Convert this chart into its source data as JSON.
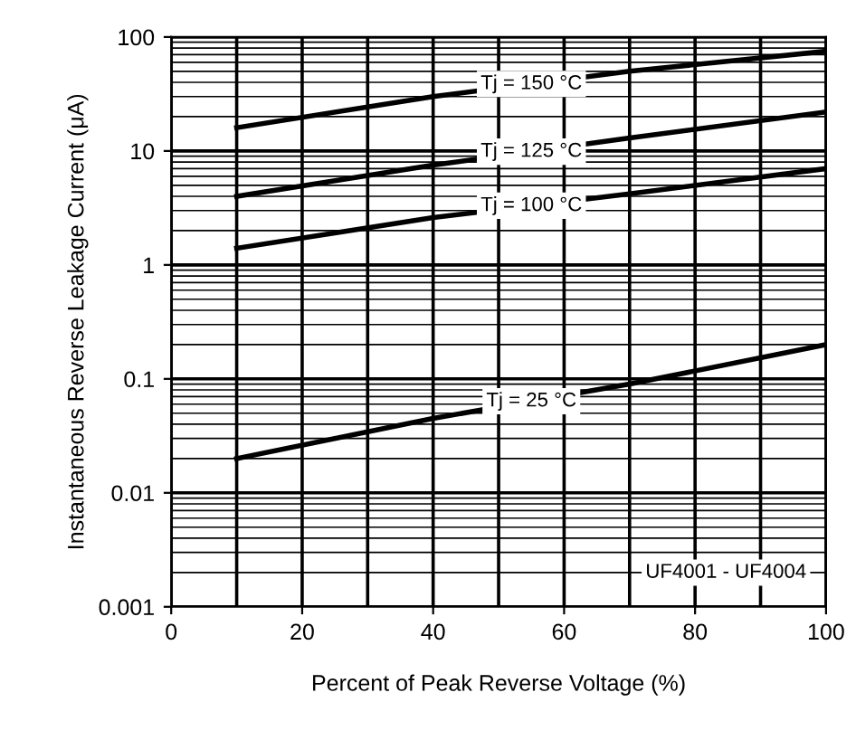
{
  "chart_data": {
    "type": "line",
    "xlabel": "Percent of Peak Reverse Voltage (%)",
    "ylabel": "Instantaneous Reverse Leakage Current (μA)",
    "x": [
      10,
      40,
      70,
      100
    ],
    "series": [
      {
        "name": "Tj = 150 °C",
        "color": "#000000",
        "values": [
          16,
          30,
          50,
          75
        ]
      },
      {
        "name": "Tj = 125 °C",
        "color": "#000000",
        "values": [
          4,
          7.5,
          13,
          22
        ]
      },
      {
        "name": "Tj = 100 °C",
        "color": "#000000",
        "values": [
          1.4,
          2.6,
          4.2,
          7
        ]
      },
      {
        "name": "Tj = 25 °C",
        "color": "#000000",
        "values": [
          0.02,
          0.045,
          0.09,
          0.2
        ]
      }
    ],
    "annotations": [
      "UF4001 - UF4004"
    ],
    "log": "y",
    "grid": true,
    "xlim": [
      0,
      100
    ],
    "xticks": [
      0,
      20,
      40,
      60,
      80,
      100
    ],
    "ylim": [
      0.001,
      100
    ],
    "yticks": [
      0.001,
      0.01,
      0.1,
      1,
      10,
      100
    ],
    "line_style": "solid",
    "marker": "none"
  }
}
